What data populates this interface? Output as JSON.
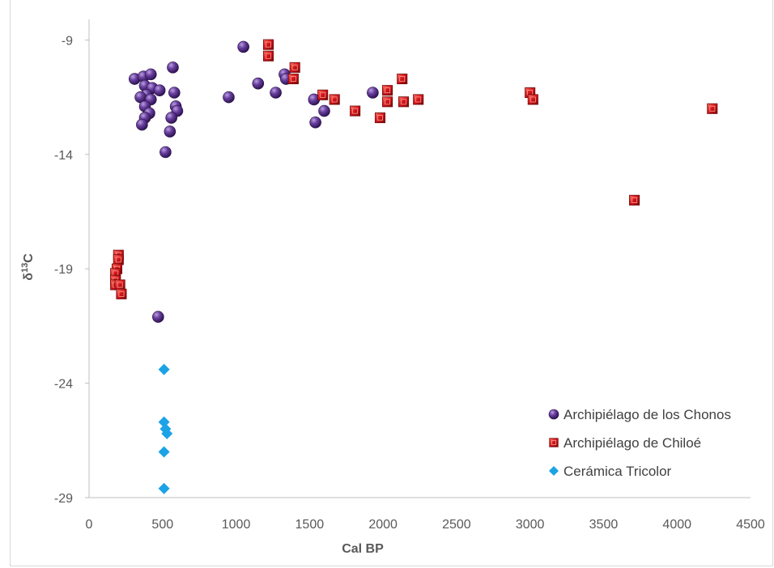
{
  "chart_data": {
    "type": "scatter",
    "title": "",
    "xlabel": "Cal BP",
    "ylabel": "δ13C",
    "ylabel_main": "δ",
    "ylabel_sup": "13",
    "ylabel_tail": "C",
    "xlim": [
      0,
      4500
    ],
    "ylim": [
      -29,
      -8
    ],
    "x_ticks": [
      0,
      500,
      1000,
      1500,
      2000,
      2500,
      3000,
      3500,
      4000,
      4500
    ],
    "y_ticks": [
      -9,
      -14,
      -19,
      -24,
      -29
    ],
    "grid": false,
    "legend_position": "bottom-right",
    "series": [
      {
        "name": "Archipiélago de los Chonos",
        "marker": "circle",
        "color": "#5b2d8e",
        "points": [
          [
            310,
            -10.7
          ],
          [
            370,
            -10.6
          ],
          [
            420,
            -10.5
          ],
          [
            380,
            -11.0
          ],
          [
            430,
            -11.1
          ],
          [
            390,
            -11.4
          ],
          [
            480,
            -11.2
          ],
          [
            570,
            -10.2
          ],
          [
            580,
            -11.3
          ],
          [
            350,
            -11.5
          ],
          [
            420,
            -11.6
          ],
          [
            380,
            -11.9
          ],
          [
            590,
            -11.9
          ],
          [
            600,
            -12.1
          ],
          [
            410,
            -12.2
          ],
          [
            380,
            -12.4
          ],
          [
            560,
            -12.4
          ],
          [
            360,
            -12.7
          ],
          [
            550,
            -13.0
          ],
          [
            520,
            -13.9
          ],
          [
            1050,
            -9.3
          ],
          [
            1150,
            -10.9
          ],
          [
            1270,
            -11.3
          ],
          [
            1330,
            -10.5
          ],
          [
            1340,
            -10.7
          ],
          [
            950,
            -11.5
          ],
          [
            1530,
            -11.6
          ],
          [
            1600,
            -12.1
          ],
          [
            1540,
            -12.6
          ],
          [
            1930,
            -11.3
          ],
          [
            470,
            -21.1
          ]
        ]
      },
      {
        "name": "Archipiélago de Chiloé",
        "marker": "square",
        "color": "#e31a1c",
        "points": [
          [
            1220,
            -9.2
          ],
          [
            1220,
            -9.7
          ],
          [
            1400,
            -10.2
          ],
          [
            1390,
            -10.7
          ],
          [
            1590,
            -11.4
          ],
          [
            1670,
            -11.6
          ],
          [
            1810,
            -12.1
          ],
          [
            1980,
            -12.4
          ],
          [
            2030,
            -11.2
          ],
          [
            2030,
            -11.7
          ],
          [
            2130,
            -10.7
          ],
          [
            2140,
            -11.7
          ],
          [
            2240,
            -11.6
          ],
          [
            3000,
            -11.3
          ],
          [
            3020,
            -11.6
          ],
          [
            4240,
            -12.0
          ],
          [
            3710,
            -16.0
          ],
          [
            200,
            -18.4
          ],
          [
            200,
            -18.6
          ],
          [
            190,
            -19.0
          ],
          [
            180,
            -19.2
          ],
          [
            180,
            -19.5
          ],
          [
            180,
            -19.7
          ],
          [
            210,
            -19.7
          ],
          [
            220,
            -20.1
          ]
        ]
      },
      {
        "name": "Cerámica Tricolor",
        "marker": "diamond",
        "color": "#1ca3e5",
        "points": [
          [
            510,
            -23.4
          ],
          [
            510,
            -25.7
          ],
          [
            520,
            -26.0
          ],
          [
            530,
            -26.2
          ],
          [
            510,
            -27.0
          ],
          [
            510,
            -28.6
          ]
        ]
      }
    ]
  }
}
